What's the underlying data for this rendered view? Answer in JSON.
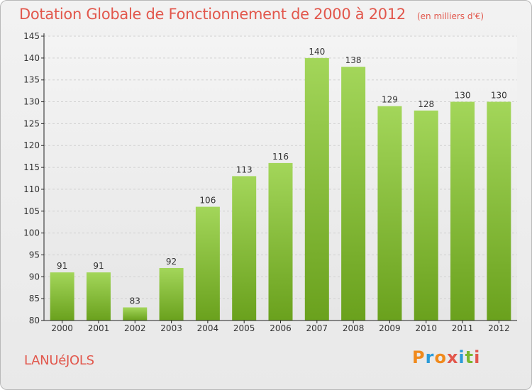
{
  "header": {
    "title": "Dotation Globale de Fonctionnement de 2000 à 2012",
    "unit": "(en milliers d'€)"
  },
  "footer": {
    "commune": "LANUéJOLS",
    "logo_text": "Proxiti"
  },
  "colors": {
    "title": "#e2574c",
    "bar_light": "#a3d65a",
    "bar_dark": "#6aa11d",
    "axis": "#222222",
    "grid": "#d0d0d0",
    "logo_letters": [
      "#f08a1c",
      "#2b9bd8",
      "#f08a1c",
      "#e2574c",
      "#2b9bd8",
      "#7ab82e",
      "#e2574c"
    ]
  },
  "chart_data": {
    "type": "bar",
    "categories": [
      "2000",
      "2001",
      "2002",
      "2003",
      "2004",
      "2005",
      "2006",
      "2007",
      "2008",
      "2009",
      "2010",
      "2011",
      "2012"
    ],
    "values": [
      91,
      91,
      83,
      92,
      106,
      113,
      116,
      140,
      138,
      129,
      128,
      130,
      130
    ],
    "data_labels": [
      "91",
      "91",
      "83",
      "92",
      "106",
      "113",
      "116",
      "140",
      "138",
      "129",
      "128",
      "130",
      "130"
    ],
    "title": "Dotation Globale de Fonctionnement de 2000 à 2012",
    "xlabel": "",
    "ylabel": "",
    "ylim": [
      80,
      145
    ],
    "yticks": [
      80,
      85,
      90,
      95,
      100,
      105,
      110,
      115,
      120,
      125,
      130,
      135,
      140,
      145
    ],
    "grid": true,
    "legend": "none"
  }
}
